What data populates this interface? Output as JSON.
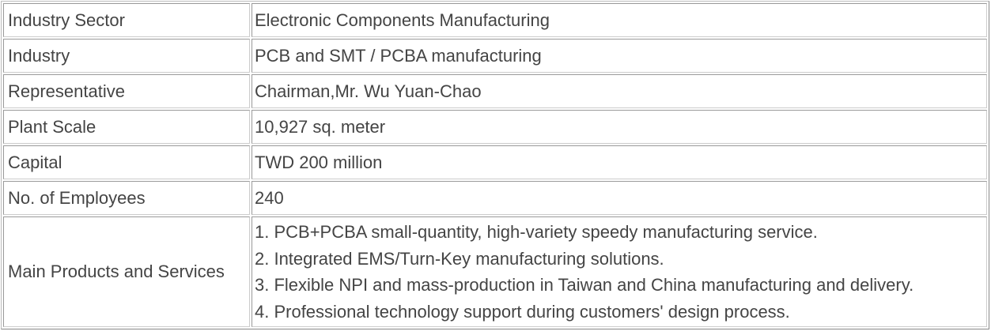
{
  "table": {
    "rows": [
      [
        "Industry Sector",
        "Electronic Components Manufacturing"
      ],
      [
        "Industry",
        "PCB and SMT / PCBA manufacturing"
      ],
      [
        "Representative",
        "Chairman,Mr. Wu Yuan-Chao"
      ],
      [
        "Plant Scale",
        "10,927 sq. meter"
      ],
      [
        "Capital",
        "TWD 200 million"
      ],
      [
        "No. of Employees",
        "240"
      ],
      [
        "Main Products and Services",
        [
          "1. PCB+PCBA small-quantity, high-variety speedy manufacturing service.",
          "2. Integrated EMS/Turn-Key manufacturing solutions.",
          "3. Flexible NPI and mass-production in Taiwan and China manufacturing and delivery.",
          "4. Professional technology support during customers' design process."
        ]
      ]
    ]
  }
}
